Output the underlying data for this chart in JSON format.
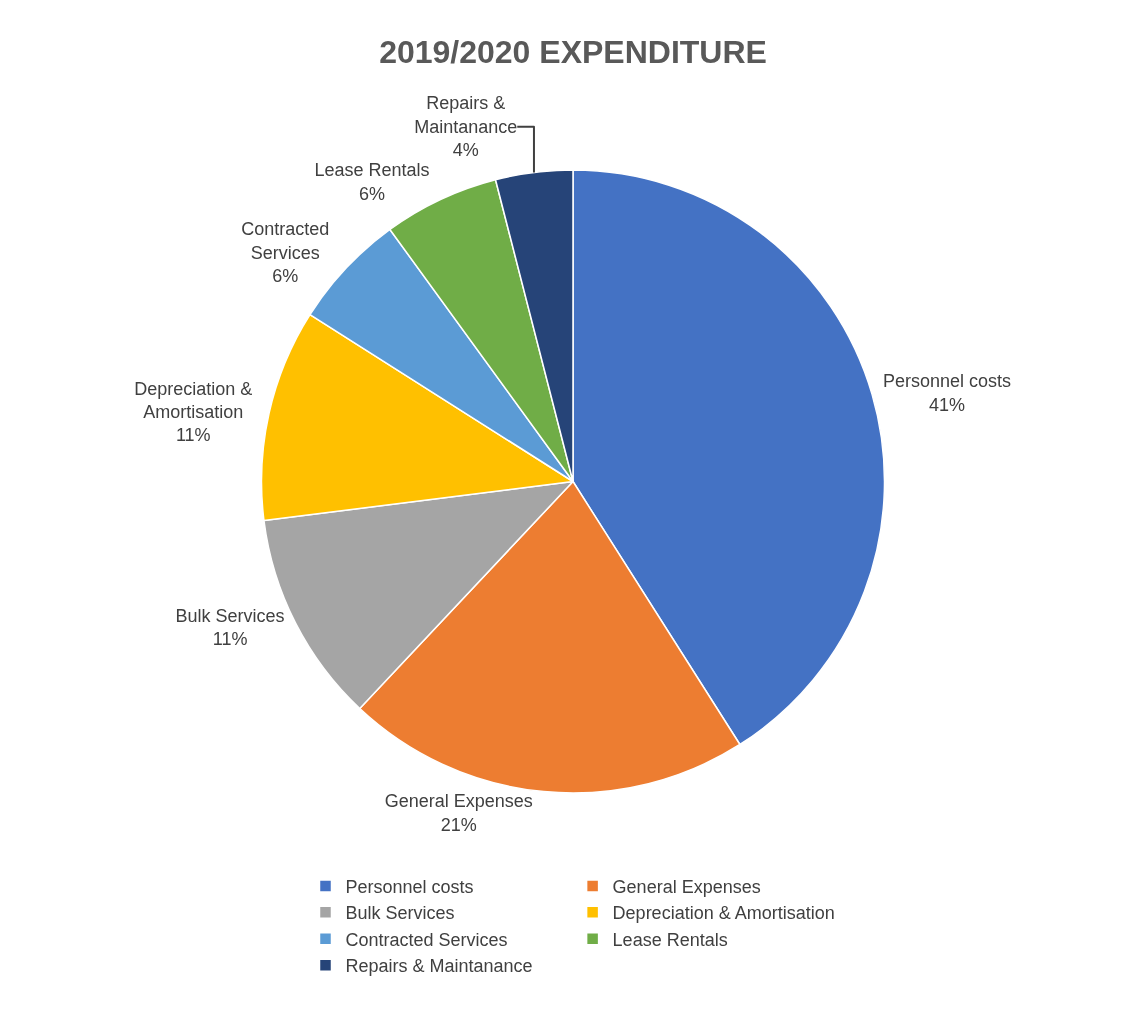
{
  "chart_data": {
    "type": "pie",
    "title": "2019/2020 EXPENDITURE",
    "categories": [
      "Personnel costs",
      "General Expenses",
      "Bulk Services",
      "Depreciation & Amortisation",
      "Contracted Services",
      "Lease Rentals",
      "Repairs & Maintanance"
    ],
    "values": [
      41,
      21,
      11,
      11,
      6,
      6,
      4
    ],
    "value_labels": [
      "41%",
      "21%",
      "11%",
      "11%",
      "6%",
      "6%",
      "4%"
    ],
    "colors": [
      "#4472c4",
      "#ed7d31",
      "#a5a5a5",
      "#ffc000",
      "#5b9bd5",
      "#70ad47",
      "#264478"
    ],
    "legend": "bottom"
  }
}
